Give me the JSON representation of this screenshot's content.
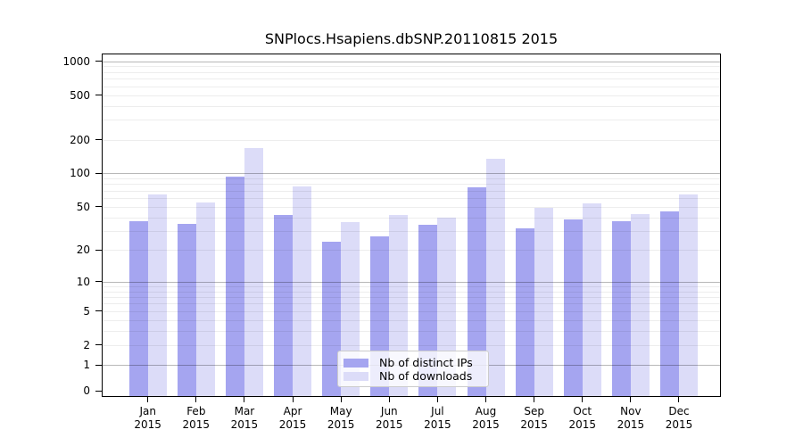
{
  "chart_data": {
    "type": "bar",
    "title": "SNPlocs.Hsapiens.dbSNP.20110815 2015",
    "categories": [
      "Jan",
      "Feb",
      "Mar",
      "Apr",
      "May",
      "Jun",
      "Jul",
      "Aug",
      "Sep",
      "Oct",
      "Nov",
      "Dec"
    ],
    "year": "2015",
    "series": [
      {
        "name": "Nb of distinct IPs",
        "color": "#a5a5f0",
        "values": [
          37,
          35,
          94,
          42,
          24,
          27,
          34,
          75,
          32,
          38,
          37,
          45
        ]
      },
      {
        "name": "Nb of downloads",
        "color": "#dcdcf8",
        "values": [
          65,
          55,
          168,
          76,
          36,
          42,
          40,
          134,
          49,
          54,
          43,
          65
        ]
      }
    ],
    "ylabel": "",
    "xlabel": "",
    "yscale": "log1p",
    "ylim": [
      0,
      1000
    ],
    "yticks": [
      0,
      1,
      2,
      5,
      10,
      20,
      50,
      100,
      200,
      500,
      1000
    ],
    "major_gridlines": [
      1,
      10,
      100,
      1000
    ],
    "minor_gridlines": [
      2,
      3,
      4,
      5,
      6,
      7,
      8,
      9,
      20,
      30,
      40,
      50,
      60,
      70,
      80,
      90,
      200,
      300,
      400,
      500,
      600,
      700,
      800,
      900
    ],
    "grid": true,
    "legend_position": "lower center"
  }
}
